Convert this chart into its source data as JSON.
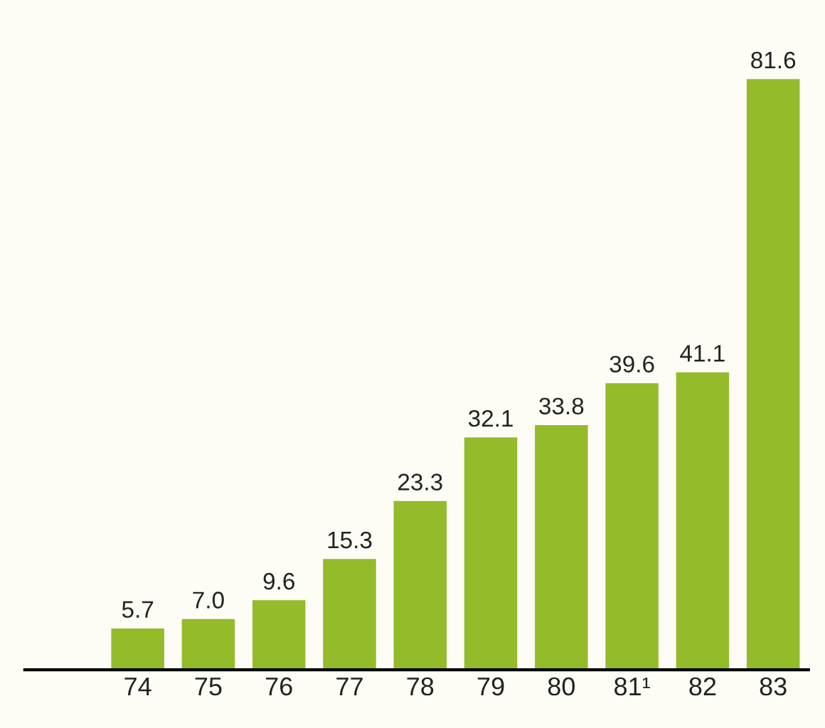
{
  "chart_data": {
    "type": "bar",
    "categories": [
      "74",
      "75",
      "76",
      "77",
      "78",
      "79",
      "80",
      "81¹",
      "82",
      "83"
    ],
    "values": [
      5.7,
      7.0,
      9.6,
      15.3,
      23.3,
      32.1,
      33.8,
      39.6,
      41.1,
      81.6
    ],
    "value_labels": [
      "5.7",
      "7.0",
      "9.6",
      "15.3",
      "23.3",
      "32.1",
      "33.8",
      "39.6",
      "41.1",
      "81.6"
    ],
    "color": "#93bb2a"
  }
}
